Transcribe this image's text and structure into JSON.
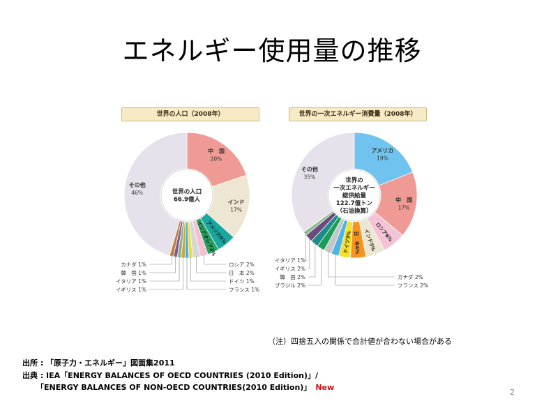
{
  "slide": {
    "title": "エネルギー使用量の推移",
    "note": "（注）四捨五入の関係で合計値が合わない場合がある",
    "source1": "出所 : 「原子力・エネルギー」図面集2011",
    "source2": "出典 : IEA「ENERGY BALANCES OF OECD COUNTRIES (2010 Edition)」/",
    "source3": "「ENERGY BALANCES OF NON-OECD COUNTRIES(2010 Edition)」",
    "new_badge": "New",
    "page_number": "2"
  },
  "chart_data": [
    {
      "type": "pie",
      "title": "世界の人口（2008年）",
      "center_lines": [
        "世界の人口",
        "66.9億人"
      ],
      "slices": [
        {
          "label": "中　国",
          "value": 20,
          "value_label": "20%",
          "color": "#ef9a94",
          "show": "inner"
        },
        {
          "label": "インド",
          "value": 17,
          "value_label": "17%",
          "color": "#ede6d2",
          "show": "inner"
        },
        {
          "label": "アメリカ",
          "value": 5,
          "value_label": "5%",
          "color": "#1aa7a0",
          "show": "radial"
        },
        {
          "label": "インドネシア",
          "value": 3,
          "value_label": "3%",
          "color": "#25a25f",
          "show": "radial"
        },
        {
          "label": "ロシア",
          "value": 2,
          "value_label": "2%",
          "color": "#f4bfd3",
          "show": "leader"
        },
        {
          "label": "日　本",
          "value": 2,
          "value_label": "2%",
          "color": "#d7d7d7",
          "show": "leader"
        },
        {
          "label": "ドイツ",
          "value": 1,
          "value_label": "1%",
          "color": "#f0e020",
          "show": "leader"
        },
        {
          "label": "フランス",
          "value": 1,
          "value_label": "1%",
          "color": "#4ab0e0",
          "show": "leader"
        },
        {
          "label": "イギリス",
          "value": 1,
          "value_label": "1%",
          "color": "#c8a84a",
          "show": "leader"
        },
        {
          "label": "イタリア",
          "value": 1,
          "value_label": "1%",
          "color": "#8fb08a",
          "show": "leader"
        },
        {
          "label": "韓　国",
          "value": 1,
          "value_label": "1%",
          "color": "#7e5c8e",
          "show": "leader"
        },
        {
          "label": "カナダ",
          "value": 1,
          "value_label": "1%",
          "color": "#c37a40",
          "show": "leader"
        },
        {
          "label": "その他",
          "value": 46,
          "value_label": "46%",
          "color": "#e6e1ea",
          "show": "inner"
        }
      ]
    },
    {
      "type": "pie",
      "title": "世界の一次エネルギー消費量（2008年）",
      "center_lines": [
        "世界の",
        "一次エネルギー",
        "総供給量",
        "122.7億トン",
        "（石油換算）"
      ],
      "slices": [
        {
          "label": "アメリカ",
          "value": 19,
          "value_label": "19%",
          "color": "#6fc3ee",
          "show": "inner"
        },
        {
          "label": "中　国",
          "value": 17,
          "value_label": "17%",
          "color": "#ef9a94",
          "show": "inner"
        },
        {
          "label": "ロシア",
          "value": 6,
          "value_label": "6%",
          "color": "#f4c4d6",
          "show": "radial"
        },
        {
          "label": "インド",
          "value": 5,
          "value_label": "5%",
          "color": "#ede6d2",
          "show": "radial"
        },
        {
          "label": "日　本",
          "value": 4,
          "value_label": "4%",
          "color": "#f7941d",
          "show": "radial"
        },
        {
          "label": "ドイツ",
          "value": 3,
          "value_label": "3%",
          "color": "#f6e02a",
          "show": "radial"
        },
        {
          "label": "フランス",
          "value": 2,
          "value_label": "2%",
          "color": "#4cb4e6",
          "show": "leader"
        },
        {
          "label": "カナダ",
          "value": 2,
          "value_label": "2%",
          "color": "#c6c6c6",
          "show": "leader"
        },
        {
          "label": "ブラジル",
          "value": 2,
          "value_label": "2%",
          "color": "#1b9d5a",
          "show": "leader"
        },
        {
          "label": "韓　国",
          "value": 2,
          "value_label": "2%",
          "color": "#1f8a8a",
          "show": "leader"
        },
        {
          "label": "イギリス",
          "value": 2,
          "value_label": "2%",
          "color": "#6a4a7e",
          "show": "leader"
        },
        {
          "label": "イタリア",
          "value": 1,
          "value_label": "1%",
          "color": "#8ab88a",
          "show": "leader"
        },
        {
          "label": "その他",
          "value": 35,
          "value_label": "35%",
          "color": "#e6e1ea",
          "show": "inner"
        }
      ]
    }
  ]
}
